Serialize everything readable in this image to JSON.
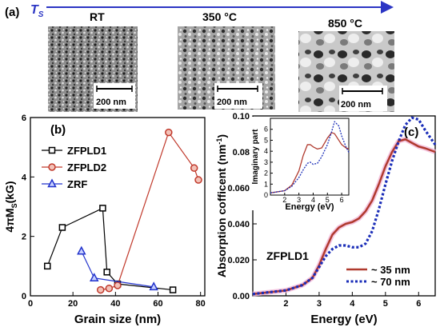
{
  "panel_a": {
    "label": "(a)",
    "arrow_label_main": "T",
    "arrow_label_sub": "S",
    "images": [
      {
        "label": "RT",
        "scale_bar": "200 nm",
        "style": "fine"
      },
      {
        "label": "350 °C",
        "scale_bar": "200 nm",
        "style": "medium"
      },
      {
        "label": "850 °C",
        "scale_bar": "200 nm",
        "style": "coarse"
      }
    ],
    "colors": {
      "arrow": "#2b35c4"
    }
  },
  "chart_data": [
    {
      "panel": "(b)",
      "type": "line",
      "xlabel": "Grain size (nm)",
      "ylabel": "4πM",
      "ylabel_sub": "S",
      "ylabel_unit": "(kG)",
      "xlim": [
        0,
        82
      ],
      "ylim": [
        0,
        6
      ],
      "xticks": [
        0,
        20,
        40,
        60,
        80
      ],
      "yticks": [
        0,
        2,
        4,
        6
      ],
      "legend_position": "top-left",
      "series": [
        {
          "name": "ZFPLD1",
          "marker": "square",
          "color": "#000000",
          "x": [
            8,
            15,
            34,
            36,
            41,
            67
          ],
          "y": [
            1.0,
            2.3,
            2.95,
            0.8,
            0.4,
            0.2
          ]
        },
        {
          "name": "ZFPLD2",
          "marker": "circle",
          "color": "#c0392b",
          "x": [
            33,
            37,
            41,
            65,
            77,
            79
          ],
          "y": [
            0.2,
            0.25,
            0.35,
            5.5,
            4.3,
            3.9
          ]
        },
        {
          "name": "ZRF",
          "marker": "triangle",
          "color": "#2233cc",
          "x": [
            24,
            30,
            58
          ],
          "y": [
            1.5,
            0.6,
            0.3
          ]
        }
      ]
    },
    {
      "panel": "(c)",
      "type": "line",
      "xlabel": "Energy (eV)",
      "ylabel": "Absorption cofficent (nm",
      "ylabel_sup": "-1",
      "ylabel_end": ")",
      "xlim": [
        1,
        6.5
      ],
      "ylim": [
        0,
        0.1
      ],
      "xticks": [
        2,
        3,
        4,
        5,
        6
      ],
      "yticks": [
        0.0,
        0.02,
        0.04,
        0.06,
        0.08,
        0.1
      ],
      "ytick_labels": [
        "0.00",
        "0.020",
        "0.040",
        "0.060",
        "0.08",
        "0.10"
      ],
      "sample_label": "ZFPLD1",
      "legend_position": "bottom-right",
      "series": [
        {
          "name": "~ 35 nm",
          "style": "solid",
          "color": "#b03a2e",
          "x": [
            1.0,
            1.5,
            2.0,
            2.5,
            2.8,
            3.0,
            3.2,
            3.4,
            3.6,
            3.8,
            4.0,
            4.2,
            4.4,
            4.6,
            4.8,
            5.0,
            5.2,
            5.4,
            5.6,
            5.8,
            6.0,
            6.2,
            6.5
          ],
          "y": [
            0.001,
            0.002,
            0.003,
            0.006,
            0.01,
            0.017,
            0.026,
            0.034,
            0.038,
            0.04,
            0.041,
            0.043,
            0.047,
            0.053,
            0.062,
            0.072,
            0.08,
            0.086,
            0.087,
            0.085,
            0.083,
            0.082,
            0.08
          ]
        },
        {
          "name": "~ 70 nm",
          "style": "dotted",
          "color": "#1a2db8",
          "x": [
            1.0,
            1.5,
            2.0,
            2.5,
            2.8,
            3.0,
            3.2,
            3.4,
            3.6,
            3.8,
            4.0,
            4.2,
            4.4,
            4.6,
            4.8,
            5.0,
            5.2,
            5.4,
            5.6,
            5.8,
            6.0,
            6.2,
            6.5
          ],
          "y": [
            0.001,
            0.002,
            0.003,
            0.006,
            0.01,
            0.016,
            0.022,
            0.026,
            0.028,
            0.028,
            0.027,
            0.027,
            0.029,
            0.036,
            0.048,
            0.062,
            0.075,
            0.086,
            0.095,
            0.099,
            0.098,
            0.092,
            0.084
          ]
        }
      ],
      "inset": {
        "type": "line",
        "xlabel": "Energy (eV)",
        "ylabel": "Imaginary part",
        "xlim": [
          1,
          6.5
        ],
        "ylim": [
          0,
          7
        ],
        "xticks": [
          2,
          3,
          4,
          5,
          6
        ],
        "yticks": [
          0,
          1,
          2,
          3,
          4,
          5,
          6
        ],
        "series": [
          {
            "style": "solid",
            "color": "#b03a2e",
            "x": [
              1.0,
              2.0,
              2.5,
              3.0,
              3.3,
              3.6,
              3.8,
              4.0,
              4.3,
              4.6,
              5.0,
              5.3,
              5.5,
              5.8,
              6.0,
              6.3,
              6.5
            ],
            "y": [
              0.2,
              0.4,
              0.9,
              2.2,
              3.6,
              4.6,
              4.6,
              4.4,
              4.2,
              4.3,
              5.2,
              5.7,
              5.6,
              5.0,
              4.6,
              4.3,
              4.2
            ]
          },
          {
            "style": "dotted",
            "color": "#1a2db8",
            "x": [
              1.0,
              2.0,
              2.5,
              3.0,
              3.3,
              3.6,
              3.8,
              4.0,
              4.3,
              4.6,
              5.0,
              5.3,
              5.5,
              5.8,
              6.0,
              6.3,
              6.5
            ],
            "y": [
              0.2,
              0.4,
              0.8,
              1.6,
              2.3,
              2.9,
              3.0,
              2.8,
              2.9,
              3.5,
              4.6,
              5.8,
              6.7,
              6.3,
              5.4,
              4.4,
              3.9
            ]
          }
        ]
      }
    }
  ]
}
